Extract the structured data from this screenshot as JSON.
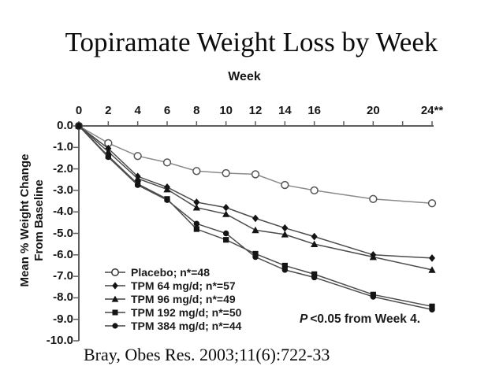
{
  "slide": {
    "title": "Topiramate Weight Loss by Week",
    "citation": "Bray, Obes Res. 2003;11(6):722-33"
  },
  "chart_data": {
    "type": "line",
    "title": "Topiramate Weight Loss by Week",
    "x_axis": {
      "title": "Week",
      "range": [
        0,
        24
      ],
      "labeled_ticks": [
        0,
        2,
        4,
        6,
        8,
        10,
        12,
        14,
        16,
        20,
        24
      ],
      "tick_labels": [
        "0",
        "2",
        "4",
        "6",
        "8",
        "10",
        "12",
        "14",
        "16",
        "20",
        "24**"
      ],
      "minor_ticks": [
        18,
        22
      ],
      "position": "top"
    },
    "y_axis": {
      "title": "Mean % Weight Change From Baseline",
      "title_line1": "Mean % Weight Change",
      "title_line2": "From Baseline",
      "range": [
        0,
        -10
      ],
      "ticks": [
        0,
        -1,
        -2,
        -3,
        -4,
        -5,
        -6,
        -7,
        -8,
        -9,
        -10
      ],
      "tick_labels": [
        "0.0",
        "-1.0",
        "-2.0",
        "-3.0",
        "-4.0",
        "-5.0",
        "-6.0",
        "-7.0",
        "-8.0",
        "-9.0",
        "-10.0"
      ]
    },
    "weeks": [
      0,
      2,
      4,
      6,
      8,
      10,
      12,
      14,
      16,
      20,
      24
    ],
    "series": [
      {
        "name": "Placebo; n*=48",
        "marker": "circle-open",
        "line_color": "#8a8a8a",
        "values": [
          0,
          -0.8,
          -1.4,
          -1.7,
          -2.1,
          -2.2,
          -2.25,
          -2.75,
          -3.0,
          -3.4,
          -3.6
        ]
      },
      {
        "name": "TPM 64 mg/d; n*=57",
        "marker": "diamond",
        "line_color": "#4c4c4c",
        "values": [
          0,
          -1.05,
          -2.35,
          -2.85,
          -3.55,
          -3.8,
          -4.3,
          -4.75,
          -5.15,
          -6.0,
          -6.15
        ]
      },
      {
        "name": "TPM 96 mg/d; n*=49",
        "marker": "triangle",
        "line_color": "#4c4c4c",
        "values": [
          0,
          -1.2,
          -2.45,
          -2.95,
          -3.8,
          -4.1,
          -4.85,
          -5.05,
          -5.5,
          -6.1,
          -6.7
        ]
      },
      {
        "name": "TPM 192 mg/d; n*=50",
        "marker": "square",
        "line_color": "#4c4c4c",
        "values": [
          0,
          -1.4,
          -2.7,
          -3.4,
          -4.8,
          -5.3,
          -5.95,
          -6.5,
          -6.9,
          -7.85,
          -8.4
        ]
      },
      {
        "name": "TPM 384 mg/d; n*=44",
        "marker": "circle-filled",
        "line_color": "#4c4c4c",
        "values": [
          0,
          -1.45,
          -2.75,
          -3.45,
          -4.55,
          -5.0,
          -6.1,
          -6.7,
          -7.05,
          -7.95,
          -8.55
        ]
      }
    ],
    "annotation": {
      "italic_prefix": "P",
      "text": "<0.05 from Week 4."
    },
    "legend_position": "lower-left",
    "grid": false
  },
  "colors": {
    "background": "#ffffff",
    "ink": "#0c0c0c",
    "axis": "#5e5e5e",
    "marker": "#141414",
    "placebo_line": "#8a8a8a",
    "drug_line": "#4c4c4c"
  }
}
